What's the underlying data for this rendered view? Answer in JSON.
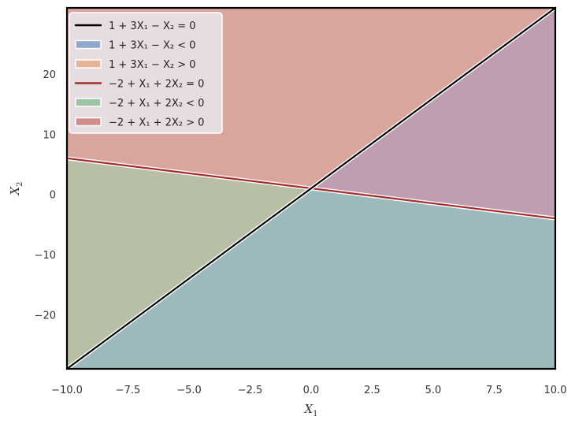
{
  "chart_data": {
    "type": "area",
    "xlabel": "X",
    "xlabel_sub": "1",
    "ylabel": "X",
    "ylabel_sub": "2",
    "xlim": [
      -10,
      10
    ],
    "ylim": [
      -29,
      31
    ],
    "xticks": [
      -10.0,
      -7.5,
      -5.0,
      -2.5,
      0.0,
      2.5,
      5.0,
      7.5,
      10.0
    ],
    "xtick_labels": [
      "−10.0",
      "−7.5",
      "−5.0",
      "−2.5",
      "0.0",
      "2.5",
      "5.0",
      "7.5",
      "10.0"
    ],
    "yticks": [
      -20,
      -10,
      0,
      10,
      20
    ],
    "ytick_labels": [
      "−20",
      "−10",
      "0",
      "10",
      "20"
    ],
    "grid": false,
    "legend_position": "top-left",
    "lines": [
      {
        "equation": "1+3X1-X2",
        "intercept": 1,
        "slope": 3,
        "color": "#000000"
      },
      {
        "equation": "-2+X1+2X2",
        "intercept": 1,
        "slope": -0.5,
        "color": "#a52a2a"
      }
    ],
    "region_colors": {
      "line1_below": "#8fa8cc",
      "line1_above": "#e5b494",
      "line2_below": "#9cc4a5",
      "line2_above": "#d28c8c",
      "overlap_top": "#d9a59d",
      "overlap_right": "#bf9eb2",
      "overlap_left": "#b9bfa5",
      "overlap_bottom": "#9cbabb"
    },
    "legend": [
      {
        "kind": "line",
        "color": "#000000",
        "text": "1 + 3X₁ − X₂ = 0"
      },
      {
        "kind": "patch",
        "color": "#8fa8cc",
        "text": "1 + 3X₁ − X₂ < 0"
      },
      {
        "kind": "patch",
        "color": "#e5b494",
        "text": "1 + 3X₁ − X₂ > 0"
      },
      {
        "kind": "line",
        "color": "#a52a2a",
        "text": "−2 + X₁ + 2X₂ = 0"
      },
      {
        "kind": "patch",
        "color": "#9cc4a5",
        "text": "−2 + X₁ + 2X₂ < 0"
      },
      {
        "kind": "patch",
        "color": "#d28c8c",
        "text": "−2 + X₁ + 2X₂ > 0"
      }
    ]
  }
}
